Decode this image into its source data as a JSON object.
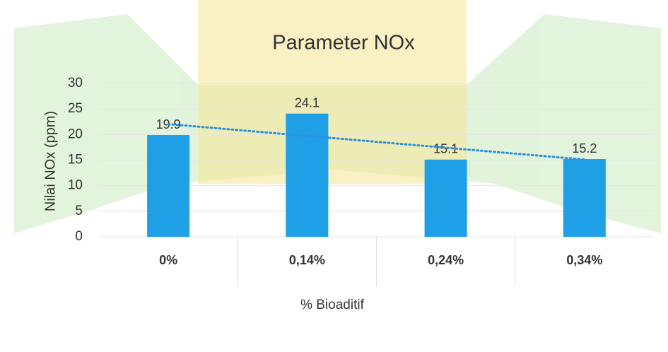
{
  "chart_data": {
    "type": "bar",
    "title": "Parameter NOx",
    "x_label": "% Bioaditif",
    "y_label": "Nilai NOx (ppm)",
    "categories": [
      "0%",
      "0,14%",
      "0,24%",
      "0,34%"
    ],
    "values": [
      19.9,
      24.1,
      15.1,
      15.2
    ],
    "color": "#1e9fe6",
    "ylim": [
      0,
      30
    ],
    "yticks": [
      0,
      5,
      10,
      15,
      20,
      25,
      30
    ],
    "grid": true,
    "data_labels": true,
    "trendline": {
      "kind": "linear",
      "color": "#2e8fdc"
    }
  }
}
